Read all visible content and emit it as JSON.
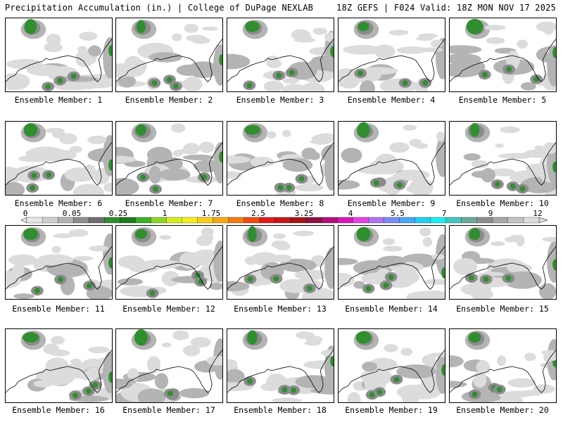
{
  "header": {
    "title_left": "Precipitation Accumulation (in.) | College of DuPage NEXLAB",
    "title_right": "18Z GEFS | F024 Valid: 18Z MON NOV 17 2025"
  },
  "panels": [
    {
      "label": "Ensemble Member: 1"
    },
    {
      "label": "Ensemble Member: 2"
    },
    {
      "label": "Ensemble Member: 3"
    },
    {
      "label": "Ensemble Member: 4"
    },
    {
      "label": "Ensemble Member: 5"
    },
    {
      "label": "Ensemble Member: 6"
    },
    {
      "label": "Ensemble Member: 7"
    },
    {
      "label": "Ensemble Member: 8"
    },
    {
      "label": "Ensemble Member: 9"
    },
    {
      "label": "Ensemble Member: 10"
    },
    {
      "label": "Ensemble Member: 11"
    },
    {
      "label": "Ensemble Member: 12"
    },
    {
      "label": "Ensemble Member: 13"
    },
    {
      "label": "Ensemble Member: 14"
    },
    {
      "label": "Ensemble Member: 15"
    },
    {
      "label": "Ensemble Member: 16"
    },
    {
      "label": "Ensemble Member: 17"
    },
    {
      "label": "Ensemble Member: 18"
    },
    {
      "label": "Ensemble Member: 19"
    },
    {
      "label": "Ensemble Member: 20"
    }
  ],
  "colorbar": {
    "tick_labels": [
      "0",
      "0.05",
      "0.25",
      "1",
      "1.75",
      "2.5",
      "3.25",
      "4",
      "5.5",
      "7",
      "9",
      "12"
    ],
    "colors": [
      "#e6e6e6",
      "#cfcfcf",
      "#b4b4b4",
      "#8e8e8e",
      "#6e6e6e",
      "#2f8f2f",
      "#1f7a1f",
      "#3fae2a",
      "#8ed424",
      "#d8ee1c",
      "#f5f01a",
      "#f7cf16",
      "#f5a912",
      "#f27e10",
      "#ee4c10",
      "#e41a1a",
      "#c31818",
      "#a31515",
      "#8a1240",
      "#b0127a",
      "#d916b8",
      "#e740e0",
      "#b070f0",
      "#7a8cf5",
      "#46a8f7",
      "#20d0f3",
      "#19f0f0",
      "#41c6c0",
      "#6aa89e",
      "#8e8e8e",
      "#a8a8a8",
      "#c4c4c4",
      "#dcdcdc"
    ]
  },
  "map_colors": {
    "light_gray": "#dcdcdc",
    "mid_gray": "#b4b4b4",
    "dark_gray": "#8c8c8c",
    "green": "#2f8f2f",
    "dark_green": "#1f6e1f"
  }
}
